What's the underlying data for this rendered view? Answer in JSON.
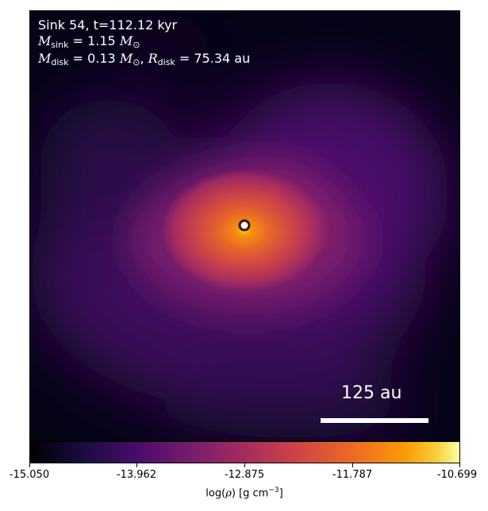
{
  "info": {
    "line1": "Sink 54, t=112.12 kyr",
    "msink_value": "1.15",
    "mdisk_value": "0.13",
    "rdisk_value": "75.34",
    "unit_au": "au"
  },
  "scale_bar": {
    "label": "125 au"
  },
  "colorbar": {
    "cmap": "inferno",
    "min": -15.05,
    "max": -10.699,
    "ticks": [
      "-15.050",
      "-13.962",
      "-12.875",
      "-11.787",
      "-10.699"
    ],
    "label_prefix": "log(",
    "label_unit": "g cm",
    "label_exp": "−3"
  },
  "colors": {
    "background_dark": "#050316",
    "core": "#fcb522",
    "sink_marker": "#ffffff"
  }
}
